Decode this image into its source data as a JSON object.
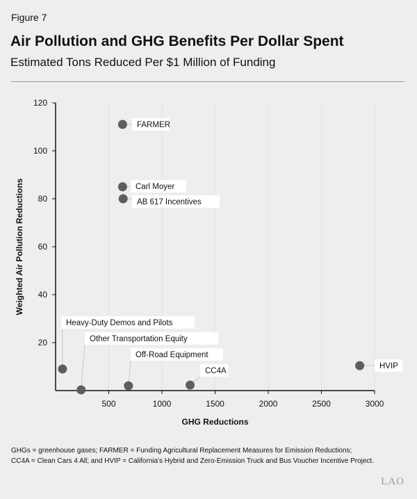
{
  "figure_label": "Figure 7",
  "notes": [
    "GHGs = greenhouse gases; FARMER = Funding Agricultural Replacement Measures for Emission Reductions;",
    "CC4A = Clean Cars 4 All; and HVIP = California's Hybrid and Zero-Emission Truck and Bus Voucher Incentive Project."
  ],
  "logo": "LAO",
  "chart_data": {
    "type": "scatter",
    "title": "Air Pollution and GHG Benefits Per Dollar Spent",
    "subtitle": "Estimated Tons Reduced Per $1 Million of Funding",
    "xlabel": "GHG Reductions",
    "ylabel": "Weighted Air Pollution Reductions",
    "xlim": [
      0,
      3000
    ],
    "ylim": [
      0,
      120
    ],
    "xticks": [
      500,
      1000,
      1500,
      2000,
      2500,
      3000
    ],
    "yticks": [
      20,
      40,
      60,
      80,
      100,
      120
    ],
    "grid": "vertical, faint",
    "colors": {
      "point": "#5e5e5e",
      "label_box": "#ffffff",
      "leader": "#c8c8c8"
    },
    "points": [
      {
        "label": "FARMER",
        "x": 630,
        "y": 111
      },
      {
        "label": "Carl Moyer",
        "x": 630,
        "y": 85
      },
      {
        "label": "AB 617 Incentives",
        "x": 635,
        "y": 80
      },
      {
        "label": "Heavy-Duty Demos and Pilots",
        "x": 65,
        "y": 9
      },
      {
        "label": "Other Transportation Equity",
        "x": 240,
        "y": 0.3
      },
      {
        "label": "Off-Road Equipment",
        "x": 685,
        "y": 2
      },
      {
        "label": "CC4A",
        "x": 1265,
        "y": 2.3
      },
      {
        "label": "HVIP",
        "x": 2860,
        "y": 10.4
      }
    ]
  }
}
